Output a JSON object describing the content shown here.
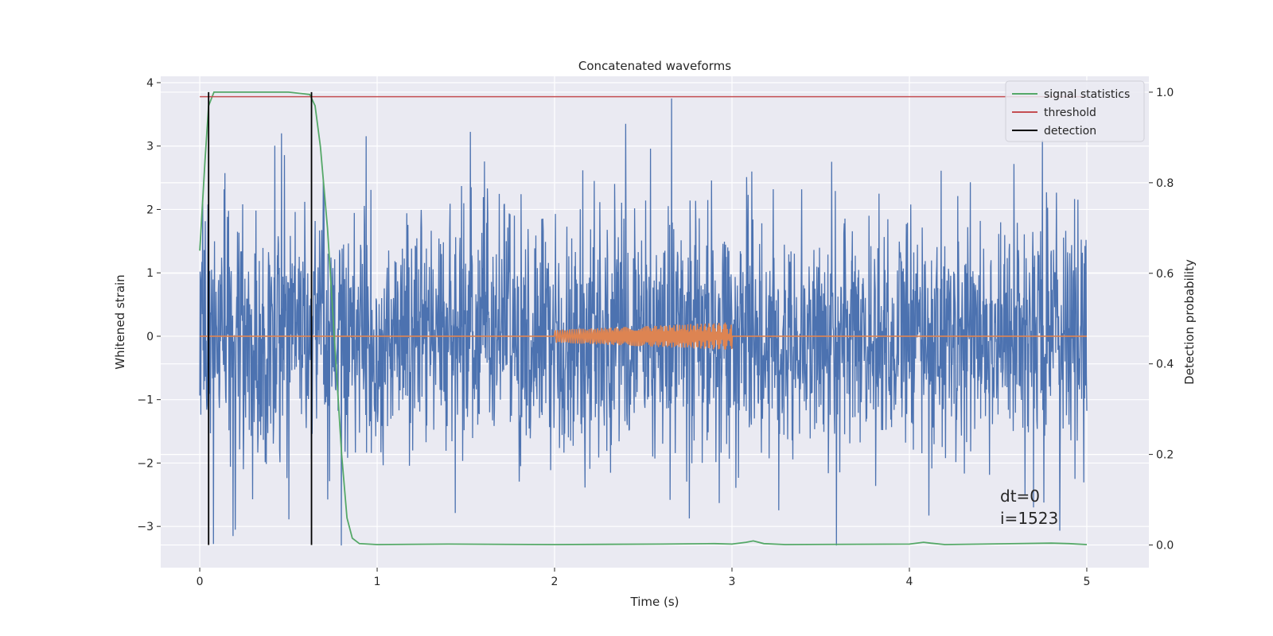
{
  "chart_data": {
    "type": "line",
    "title": "Concatenated waveforms",
    "xlabel": "Time (s)",
    "ylabel_left": "Whitened strain",
    "ylabel_right": "Detection probability",
    "xlim": [
      -0.22,
      5.35
    ],
    "ylim_left": [
      -3.65,
      4.1
    ],
    "ylim_right": [
      -0.05,
      1.035
    ],
    "xticks": [
      0,
      1,
      2,
      3,
      4,
      5
    ],
    "xtick_labels": [
      "0",
      "1",
      "2",
      "3",
      "4",
      "5"
    ],
    "yticks_left": [
      -3,
      -2,
      -1,
      0,
      1,
      2,
      3,
      4
    ],
    "ytick_labels_left": [
      "−3",
      "−2",
      "−1",
      "0",
      "1",
      "2",
      "3",
      "4"
    ],
    "yticks_right": [
      0.0,
      0.2,
      0.4,
      0.6,
      0.8,
      1.0
    ],
    "ytick_labels_right": [
      "0.0",
      "0.2",
      "0.4",
      "0.6",
      "0.8",
      "1.0"
    ],
    "grid": true,
    "legend_position": "top-right",
    "legend": [
      {
        "label": "signal statistics",
        "color": "#55a868"
      },
      {
        "label": "threshold",
        "color": "#c44e52"
      },
      {
        "label": "detection",
        "color": "#000000"
      }
    ],
    "series": [
      {
        "kind": "noise",
        "axis": "left",
        "color": "#4c72b0",
        "x_range": [
          0,
          5
        ],
        "approx_range": [
          -3.3,
          3.75
        ],
        "notable_peaks": [
          {
            "x": 2.66,
            "y": 3.75
          },
          {
            "x": 2.4,
            "y": 3.35
          },
          {
            "x": 0.46,
            "y": 3.2
          },
          {
            "x": 3.59,
            "y": -3.3
          },
          {
            "x": 0.2,
            "y": -3.05
          },
          {
            "x": 4.7,
            "y": -2.7
          },
          {
            "x": 4.75,
            "y": 3.1
          }
        ]
      },
      {
        "kind": "injected_signal",
        "axis": "left",
        "color": "#dd8452",
        "x_range": [
          0,
          5
        ],
        "signal_start": 2.0,
        "signal_end": 3.0,
        "amplitude_start": 0.1,
        "amplitude_end": 0.22
      },
      {
        "name": "signal statistics",
        "axis": "right",
        "color": "#55a868",
        "x": [
          0,
          0.03,
          0.05,
          0.08,
          0.12,
          0.3,
          0.5,
          0.62,
          0.65,
          0.68,
          0.72,
          0.76,
          0.8,
          0.83,
          0.86,
          0.9,
          1.0,
          1.4,
          2.0,
          2.6,
          2.9,
          3.0,
          3.08,
          3.12,
          3.18,
          3.3,
          4.0,
          4.08,
          4.12,
          4.2,
          4.8,
          4.9,
          5.0
        ],
        "y": [
          0.65,
          0.85,
          0.97,
          1.0,
          1.0,
          1.0,
          1.0,
          0.995,
          0.97,
          0.88,
          0.7,
          0.45,
          0.2,
          0.06,
          0.015,
          0.003,
          0.001,
          0.002,
          0.001,
          0.002,
          0.003,
          0.002,
          0.006,
          0.009,
          0.003,
          0.001,
          0.002,
          0.006,
          0.004,
          0.001,
          0.004,
          0.003,
          0.001
        ]
      },
      {
        "name": "threshold",
        "axis": "right",
        "color": "#c44e52",
        "x": [
          0,
          5
        ],
        "y": [
          0.99,
          0.99
        ]
      }
    ],
    "detections": [
      0.05,
      0.63
    ],
    "annotation": [
      "dt=0",
      "i=1523"
    ]
  }
}
